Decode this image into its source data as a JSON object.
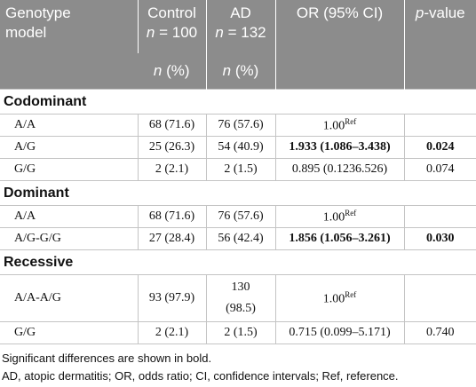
{
  "table": {
    "header": {
      "genotype": [
        "Genotype",
        "model"
      ],
      "control": {
        "label": "Control",
        "n": "n",
        "count": "= 100"
      },
      "ad": {
        "label": "AD",
        "n": "n",
        "count": "= 132"
      },
      "or": "OR (95% CI)",
      "p": {
        "italic": "p",
        "rest": "-value"
      },
      "subheader": [
        {
          "n": "n",
          "rest": "(%)"
        },
        {
          "n": "n",
          "rest": "(%)"
        }
      ]
    },
    "sections": [
      {
        "name": "Codominant",
        "rows": [
          {
            "genotype": "A/A",
            "control": "68 (71.6)",
            "ad": "76 (57.6)",
            "or": {
              "text": "1.00",
              "sup": "Ref"
            }
          },
          {
            "genotype": "A/G",
            "control": "25 (26.3)",
            "ad": "54 (40.9)",
            "or": {
              "text": "1.933 (1.086–3.438)"
            },
            "p": "0.024",
            "bold": true
          },
          {
            "genotype": "G/G",
            "control": "2 (2.1)",
            "ad": "2 (1.5)",
            "or": {
              "text": "0.895 (0.1236.526)"
            },
            "p": "0.074"
          }
        ]
      },
      {
        "name": "Dominant",
        "rows": [
          {
            "genotype": "A/A",
            "control": "68 (71.6)",
            "ad": "76 (57.6)",
            "or": {
              "text": "1.00",
              "sup": "Ref"
            }
          },
          {
            "genotype": "A/G-G/G",
            "control": "27 (28.4)",
            "ad": "56 (42.4)",
            "or": {
              "text": "1.856 (1.056–3.261)"
            },
            "p": "0.030",
            "bold": true
          }
        ]
      },
      {
        "name": "Recessive",
        "rows": [
          {
            "genotype": "A/A-A/G",
            "control": "93 (97.9)",
            "ad": "130 (98.5)",
            "or": {
              "text": "1.00",
              "sup": "Ref"
            },
            "wrap_ad": true
          },
          {
            "genotype": "G/G",
            "control": "2 (2.1)",
            "ad": "2 (1.5)",
            "or": {
              "text": "0.715 (0.099–5.171)"
            },
            "p": "0.740"
          }
        ]
      }
    ],
    "notes": [
      "Significant differences are shown in bold.",
      "AD, atopic dermatitis; OR, odds ratio; CI, confidence intervals; Ref, reference."
    ]
  }
}
